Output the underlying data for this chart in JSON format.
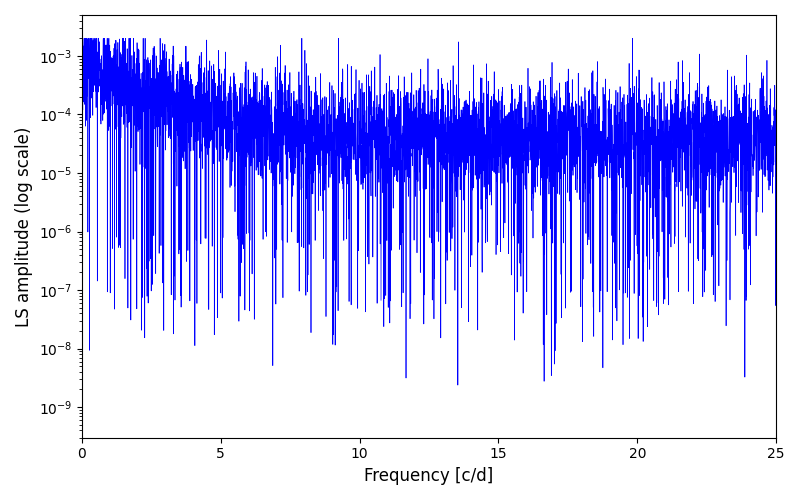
{
  "title": "",
  "xlabel": "Frequency [c/d]",
  "ylabel": "LS amplitude (log scale)",
  "line_color": "#0000ff",
  "line_width": 0.5,
  "xlim": [
    0,
    25
  ],
  "ylim_log": [
    3e-10,
    0.005
  ],
  "yticks": [
    1e-09,
    1e-08,
    1e-07,
    1e-06,
    1e-05,
    0.0001,
    0.001
  ],
  "xticks": [
    0,
    5,
    10,
    15,
    20,
    25
  ],
  "freq_max": 25.0,
  "n_points": 5000,
  "seed": 7,
  "background_color": "#ffffff",
  "figsize": [
    8.0,
    5.0
  ],
  "dpi": 100
}
